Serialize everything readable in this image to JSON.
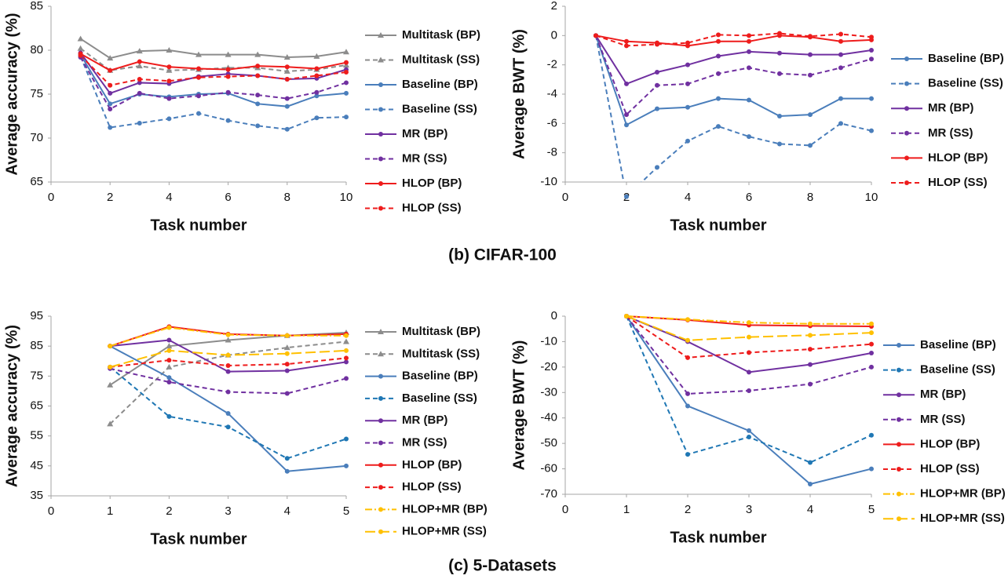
{
  "captions": [
    "(b) CIFAR-100",
    "(c) 5-Datasets"
  ],
  "chart_data": [
    {
      "type": "line",
      "x_label": "Task number",
      "y_label": "Average accuracy (%)",
      "x": [
        1,
        2,
        3,
        4,
        5,
        6,
        7,
        8,
        9,
        10
      ],
      "xlim": [
        0,
        10
      ],
      "xticks": [
        0,
        2,
        4,
        6,
        8,
        10
      ],
      "ylim": [
        65,
        85
      ],
      "yticks": [
        65,
        70,
        75,
        80,
        85
      ],
      "legend": "right",
      "series": [
        {
          "name": "Multitask (BP)",
          "color": "#8c8c8c",
          "style": "solid",
          "marker": "triangle",
          "values": [
            81.3,
            79.1,
            79.9,
            80.0,
            79.5,
            79.5,
            79.5,
            79.2,
            79.3,
            79.8
          ]
        },
        {
          "name": "Multitask (SS)",
          "color": "#8c8c8c",
          "style": "dash",
          "marker": "triangle",
          "values": [
            80.2,
            77.7,
            78.2,
            77.7,
            77.8,
            78.0,
            78.0,
            77.6,
            77.8,
            78.3
          ]
        },
        {
          "name": "Baseline (BP)",
          "color": "#4a7ebb",
          "style": "solid",
          "marker": "circle",
          "values": [
            79.5,
            73.9,
            75.0,
            74.7,
            75.0,
            75.1,
            73.9,
            73.6,
            74.8,
            75.1
          ]
        },
        {
          "name": "Baseline (SS)",
          "color": "#4a7ebb",
          "style": "dash",
          "marker": "circle",
          "values": [
            79.3,
            71.2,
            71.7,
            72.2,
            72.8,
            72.0,
            71.4,
            71.0,
            72.3,
            72.4
          ]
        },
        {
          "name": "MR (BP)",
          "color": "#7030a0",
          "style": "solid",
          "marker": "circle",
          "values": [
            79.7,
            75.1,
            76.3,
            76.2,
            77.0,
            77.3,
            77.1,
            76.7,
            76.8,
            77.8
          ]
        },
        {
          "name": "MR (SS)",
          "color": "#7030a0",
          "style": "dash",
          "marker": "circle",
          "values": [
            79.2,
            73.3,
            75.1,
            74.5,
            74.8,
            75.2,
            74.9,
            74.5,
            75.2,
            76.3
          ]
        },
        {
          "name": "HLOP (BP)",
          "color": "#ee1c1c",
          "style": "solid",
          "marker": "circle",
          "values": [
            79.6,
            77.7,
            78.7,
            78.1,
            77.9,
            77.8,
            78.2,
            78.1,
            77.9,
            78.6
          ]
        },
        {
          "name": "HLOP (SS)",
          "color": "#ee1c1c",
          "style": "dash",
          "marker": "circle",
          "values": [
            79.4,
            76.0,
            76.7,
            76.5,
            76.9,
            77.0,
            77.1,
            76.7,
            77.1,
            77.5
          ]
        }
      ]
    },
    {
      "type": "line",
      "x_label": "Task number",
      "y_label": "Average BWT (%)",
      "x": [
        1,
        2,
        3,
        4,
        5,
        6,
        7,
        8,
        9,
        10
      ],
      "xlim": [
        0,
        10
      ],
      "xticks": [
        0,
        2,
        4,
        6,
        8,
        10
      ],
      "ylim": [
        -10,
        2
      ],
      "yticks": [
        -10,
        -8,
        -6,
        -4,
        -2,
        0,
        2
      ],
      "legend": "right",
      "series": [
        {
          "name": "Baseline (BP)",
          "color": "#4a7ebb",
          "style": "solid",
          "marker": "circle",
          "values": [
            0,
            -6.1,
            -5.0,
            -4.9,
            -4.3,
            -4.4,
            -5.5,
            -5.4,
            -4.3,
            -4.3
          ]
        },
        {
          "name": "Baseline (SS)",
          "color": "#4a7ebb",
          "style": "dash",
          "marker": "circle",
          "values": [
            0,
            -11.0,
            -9.0,
            -7.2,
            -6.2,
            -6.9,
            -7.4,
            -7.5,
            -6.0,
            -6.5
          ]
        },
        {
          "name": "MR (BP)",
          "color": "#7030a0",
          "style": "solid",
          "marker": "circle",
          "values": [
            0,
            -3.3,
            -2.5,
            -2.0,
            -1.4,
            -1.1,
            -1.2,
            -1.3,
            -1.3,
            -1.0
          ]
        },
        {
          "name": "MR (SS)",
          "color": "#7030a0",
          "style": "dash",
          "marker": "circle",
          "values": [
            0,
            -5.4,
            -3.4,
            -3.3,
            -2.6,
            -2.2,
            -2.6,
            -2.7,
            -2.2,
            -1.6
          ]
        },
        {
          "name": "HLOP (BP)",
          "color": "#ee1c1c",
          "style": "solid",
          "marker": "circle",
          "values": [
            0,
            -0.4,
            -0.5,
            -0.7,
            -0.4,
            -0.4,
            0,
            -0.1,
            -0.4,
            -0.3
          ]
        },
        {
          "name": "HLOP (SS)",
          "color": "#ee1c1c",
          "style": "dash",
          "marker": "circle",
          "values": [
            0,
            -0.7,
            -0.6,
            -0.5,
            0.05,
            0,
            0.15,
            -0.05,
            0.1,
            -0.1
          ]
        }
      ]
    },
    {
      "type": "line",
      "x_label": "Task number",
      "y_label": "Average accuracy (%)",
      "x": [
        1,
        2,
        3,
        4,
        5
      ],
      "xlim": [
        0,
        5
      ],
      "xticks": [
        0,
        1,
        2,
        3,
        4,
        5
      ],
      "ylim": [
        35,
        95
      ],
      "yticks": [
        35,
        45,
        55,
        65,
        75,
        85,
        95
      ],
      "legend": "right",
      "series": [
        {
          "name": "Multitask (BP)",
          "color": "#8c8c8c",
          "style": "solid",
          "marker": "triangle",
          "values": [
            72,
            85,
            87,
            88.5,
            89.5
          ]
        },
        {
          "name": "Multitask (SS)",
          "color": "#8c8c8c",
          "style": "dash",
          "marker": "triangle",
          "values": [
            59,
            78,
            82,
            84.5,
            86.5
          ]
        },
        {
          "name": "Baseline (BP)",
          "color": "#4a7ebb",
          "style": "solid",
          "marker": "circle",
          "values": [
            85,
            74.5,
            62.5,
            43.2,
            45
          ]
        },
        {
          "name": "Baseline (SS)",
          "color": "#1f77b4",
          "style": "dash",
          "marker": "circle",
          "values": [
            78,
            61.5,
            58,
            47.5,
            54
          ]
        },
        {
          "name": "MR (BP)",
          "color": "#7030a0",
          "style": "solid",
          "marker": "circle",
          "values": [
            85,
            87,
            76.5,
            76.8,
            79.7
          ]
        },
        {
          "name": "MR (SS)",
          "color": "#7030a0",
          "style": "dash",
          "marker": "circle",
          "values": [
            77.5,
            73,
            69.7,
            69.2,
            74.2
          ]
        },
        {
          "name": "HLOP (BP)",
          "color": "#ee1c1c",
          "style": "solid",
          "marker": "circle",
          "values": [
            85,
            91.5,
            89,
            88.5,
            89
          ]
        },
        {
          "name": "HLOP (SS)",
          "color": "#ee1c1c",
          "style": "dash",
          "marker": "circle",
          "values": [
            78,
            80.3,
            78.5,
            79,
            81
          ]
        },
        {
          "name": "HLOP+MR (BP)",
          "color": "#ffc000",
          "style": "dashdot",
          "marker": "circle",
          "values": [
            85,
            91.2,
            88.8,
            88.5,
            88.5
          ]
        },
        {
          "name": "HLOP+MR (SS)",
          "color": "#ffc000",
          "style": "longdash",
          "marker": "circle",
          "values": [
            78,
            83.5,
            82,
            82.5,
            83.5
          ]
        }
      ]
    },
    {
      "type": "line",
      "x_label": "Task number",
      "y_label": "Average BWT (%)",
      "x": [
        1,
        2,
        3,
        4,
        5
      ],
      "xlim": [
        0,
        5
      ],
      "xticks": [
        0,
        1,
        2,
        3,
        4,
        5
      ],
      "ylim": [
        -70,
        0
      ],
      "yticks": [
        -70,
        -60,
        -50,
        -40,
        -30,
        -20,
        -10,
        0
      ],
      "legend": "right",
      "series": [
        {
          "name": "Baseline (BP)",
          "color": "#4a7ebb",
          "style": "solid",
          "marker": "circle",
          "values": [
            0,
            -35.3,
            -45,
            -66,
            -60
          ]
        },
        {
          "name": "Baseline (SS)",
          "color": "#1f77b4",
          "style": "dash",
          "marker": "circle",
          "values": [
            0,
            -54.3,
            -47.5,
            -57.5,
            -46.8
          ]
        },
        {
          "name": "MR (BP)",
          "color": "#7030a0",
          "style": "solid",
          "marker": "circle",
          "values": [
            0,
            -10,
            -22,
            -19,
            -14.5
          ]
        },
        {
          "name": "MR (SS)",
          "color": "#7030a0",
          "style": "dash",
          "marker": "circle",
          "values": [
            0,
            -30.5,
            -29.3,
            -26.7,
            -20
          ]
        },
        {
          "name": "HLOP (BP)",
          "color": "#ee1c1c",
          "style": "solid",
          "marker": "circle",
          "values": [
            0,
            -1.5,
            -3.5,
            -3.8,
            -4
          ]
        },
        {
          "name": "HLOP (SS)",
          "color": "#ee1c1c",
          "style": "dash",
          "marker": "circle",
          "values": [
            0,
            -16.3,
            -14.3,
            -13,
            -11
          ]
        },
        {
          "name": "HLOP+MR (BP)",
          "color": "#ffc000",
          "style": "dashdot",
          "marker": "circle",
          "values": [
            0,
            -1.3,
            -2.5,
            -3,
            -3
          ]
        },
        {
          "name": "HLOP+MR (SS)",
          "color": "#ffc000",
          "style": "longdash",
          "marker": "circle",
          "values": [
            0,
            -9.5,
            -8.2,
            -7.5,
            -6.5
          ]
        }
      ]
    }
  ]
}
